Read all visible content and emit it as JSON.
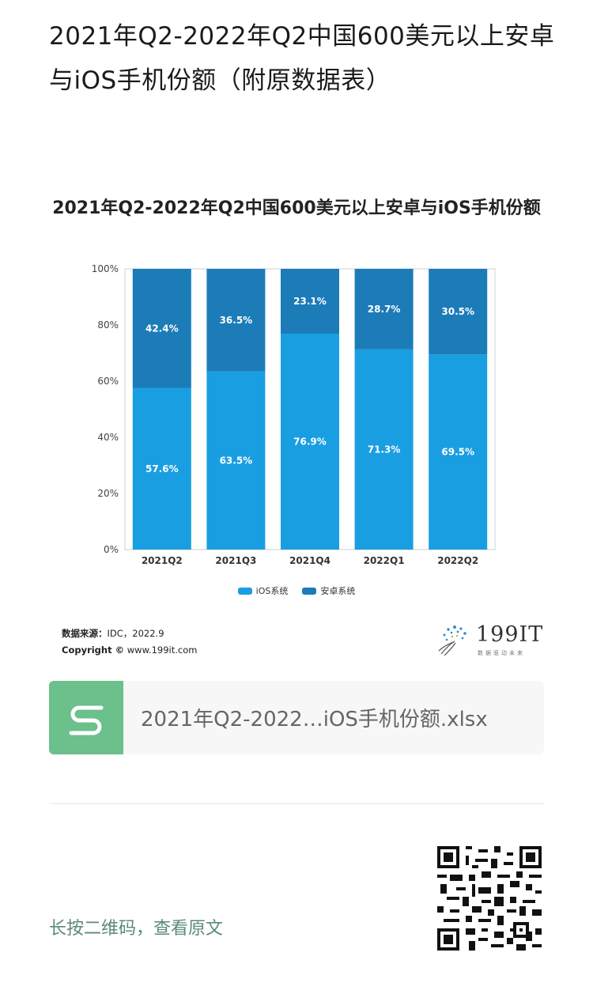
{
  "article": {
    "title": "2021年Q2-2022年Q2中国600美元以上安卓与iOS手机份额（附原数据表）"
  },
  "chart_data": {
    "type": "bar",
    "stacked": true,
    "title": "2021年Q2-2022年Q2中国600美元以上安卓与iOS手机份额",
    "categories": [
      "2021Q2",
      "2021Q3",
      "2021Q4",
      "2022Q1",
      "2022Q2"
    ],
    "series": [
      {
        "name": "iOS系统",
        "color": "#1a9ee2",
        "values": [
          57.6,
          63.5,
          76.9,
          71.3,
          69.5
        ],
        "labels": [
          "57.6%",
          "63.5%",
          "76.9%",
          "71.3%",
          "69.5%"
        ]
      },
      {
        "name": "安卓系统",
        "color": "#1b7cb8",
        "values": [
          42.4,
          36.5,
          23.1,
          28.7,
          30.5
        ],
        "labels": [
          "42.4%",
          "36.5%",
          "23.1%",
          "28.7%",
          "30.5%"
        ]
      }
    ],
    "yticks": [
      "0%",
      "20%",
      "40%",
      "60%",
      "80%",
      "100%"
    ],
    "ylim": [
      0,
      100
    ],
    "legend_position": "bottom"
  },
  "source": {
    "label": "数据来源：",
    "text": "IDC，2022.9",
    "copyright_label": "Copyright ©",
    "copyright_text": "www.199it.com"
  },
  "logo": {
    "text": "199IT",
    "slogan": "数据驱动未来"
  },
  "attachment": {
    "filename": "2021年Q2-2022…iOS手机份额.xlsx",
    "icon": "spreadsheet-s-icon",
    "color": "#6cc08b"
  },
  "footer": {
    "qr_hint": "长按二维码，查看原文",
    "qr_icon": "qr-code-icon"
  }
}
